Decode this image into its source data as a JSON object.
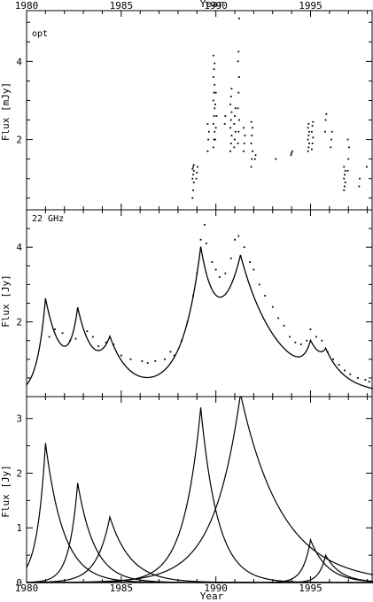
{
  "chart_data": {
    "type": "multi-panel",
    "x_axis": {
      "label": "Year",
      "range": [
        1980,
        1998.3
      ],
      "tick_labels": [
        "1980",
        "1985",
        "1990",
        "1995"
      ]
    },
    "panels": [
      {
        "type": "scatter",
        "label": "opt",
        "ylabel": "Flux [mJy]",
        "ylim": [
          0.2,
          5.3
        ],
        "ytick_labels": [
          "2",
          "4"
        ],
        "ytick_values": [
          2,
          4
        ],
        "groups": [
          {
            "t": 1988.8,
            "values": [
              0.5,
              0.7,
              0.9,
              1.0,
              1.1,
              1.2,
              1.25,
              1.3,
              1.35
            ]
          },
          {
            "t": 1989.0,
            "values": [
              1.0,
              1.15,
              1.3
            ]
          },
          {
            "t": 1989.6,
            "values": [
              1.7,
              2.0,
              2.2,
              2.4
            ]
          },
          {
            "t": 1989.9,
            "values": [
              1.8,
              2.0,
              2.2,
              2.4,
              2.6,
              2.8,
              3.0,
              3.2,
              3.4,
              3.6,
              3.8,
              3.95,
              4.15
            ]
          },
          {
            "t": 1990.0,
            "values": [
              2.0,
              2.3,
              2.6,
              2.9,
              3.2
            ]
          },
          {
            "t": 1990.5,
            "values": [
              2.4,
              2.6
            ]
          },
          {
            "t": 1990.8,
            "values": [
              1.7,
              1.9,
              2.1,
              2.3,
              2.5,
              2.7,
              2.9,
              3.1,
              3.3
            ]
          },
          {
            "t": 1991.0,
            "values": [
              1.8,
              2.0,
              2.2,
              2.4,
              2.6,
              2.8
            ]
          },
          {
            "t": 1991.2,
            "values": [
              1.9,
              2.2,
              2.5,
              2.8,
              3.2,
              3.6,
              4.0,
              4.25,
              5.1
            ]
          },
          {
            "t": 1991.5,
            "values": [
              1.7,
              1.9,
              2.1,
              2.3
            ]
          },
          {
            "t": 1991.9,
            "values": [
              1.3,
              1.5,
              1.7,
              1.9,
              2.1,
              2.3,
              2.45
            ]
          },
          {
            "t": 1992.1,
            "values": [
              1.5,
              1.6
            ]
          },
          {
            "t": 1993.2,
            "values": [
              1.5
            ]
          },
          {
            "t": 1994.0,
            "values": [
              1.6,
              1.65,
              1.7
            ]
          },
          {
            "t": 1994.9,
            "values": [
              1.7,
              1.8,
              1.9,
              2.0,
              2.1,
              2.2,
              2.3,
              2.4
            ]
          },
          {
            "t": 1995.1,
            "values": [
              1.75,
              1.9,
              2.05,
              2.2,
              2.35,
              2.45
            ]
          },
          {
            "t": 1995.8,
            "values": [
              2.2,
              2.5,
              2.65
            ]
          },
          {
            "t": 1996.1,
            "values": [
              1.8,
              2.0,
              2.2
            ]
          },
          {
            "t": 1996.8,
            "values": [
              0.7,
              0.8,
              0.9,
              1.0,
              1.1,
              1.2,
              1.3
            ]
          },
          {
            "t": 1997.0,
            "values": [
              1.2,
              1.5,
              1.8,
              2.0
            ]
          },
          {
            "t": 1997.6,
            "values": [
              0.8,
              1.0
            ]
          },
          {
            "t": 1998.0,
            "values": [
              1.3
            ]
          }
        ]
      },
      {
        "type": "line+scatter",
        "label": "22 GHz",
        "ylabel": "Flux [Jy]",
        "ylim": [
          0.0,
          5.0
        ],
        "ytick_labels": [
          "2",
          "4"
        ],
        "ytick_values": [
          2,
          4
        ],
        "model_components": [
          {
            "t0": 1981.0,
            "peak": 2.55,
            "tau_rise": 0.45,
            "tau_decay": 0.95
          },
          {
            "t0": 1982.7,
            "peak": 1.82,
            "tau_rise": 0.45,
            "tau_decay": 0.9
          },
          {
            "t0": 1984.4,
            "peak": 1.2,
            "tau_rise": 0.7,
            "tau_decay": 1.1
          },
          {
            "t0": 1989.2,
            "peak": 3.2,
            "tau_rise": 0.9,
            "tau_decay": 0.9
          },
          {
            "t0": 1991.3,
            "peak": 3.45,
            "tau_rise": 1.4,
            "tau_decay": 2.2
          },
          {
            "t0": 1995.0,
            "peak": 0.78,
            "tau_rise": 0.4,
            "tau_decay": 0.9
          },
          {
            "t0": 1995.8,
            "peak": 0.5,
            "tau_rise": 0.35,
            "tau_decay": 0.8
          }
        ],
        "baseline": 0.03,
        "observations": [
          [
            1981.2,
            1.6
          ],
          [
            1981.5,
            1.8
          ],
          [
            1981.9,
            1.7
          ],
          [
            1982.3,
            1.5
          ],
          [
            1982.6,
            1.55
          ],
          [
            1983.2,
            1.75
          ],
          [
            1983.5,
            1.6
          ],
          [
            1983.8,
            1.35
          ],
          [
            1984.2,
            1.45
          ],
          [
            1984.6,
            1.4
          ],
          [
            1985.0,
            1.1
          ],
          [
            1985.5,
            1.0
          ],
          [
            1986.1,
            0.95
          ],
          [
            1986.4,
            0.9
          ],
          [
            1986.8,
            0.95
          ],
          [
            1987.3,
            1.0
          ],
          [
            1987.6,
            1.2
          ],
          [
            1987.8,
            1.1
          ],
          [
            1988.2,
            1.5
          ],
          [
            1988.5,
            2.0
          ],
          [
            1988.8,
            2.7
          ],
          [
            1989.0,
            3.3
          ],
          [
            1989.2,
            4.2
          ],
          [
            1989.4,
            4.6
          ],
          [
            1989.5,
            4.1
          ],
          [
            1989.8,
            3.6
          ],
          [
            1990.0,
            3.4
          ],
          [
            1990.2,
            3.2
          ],
          [
            1990.5,
            3.3
          ],
          [
            1990.8,
            3.7
          ],
          [
            1991.0,
            4.2
          ],
          [
            1991.2,
            4.3
          ],
          [
            1991.5,
            4.0
          ],
          [
            1991.8,
            3.6
          ],
          [
            1992.0,
            3.4
          ],
          [
            1992.3,
            3.0
          ],
          [
            1992.6,
            2.7
          ],
          [
            1993.0,
            2.4
          ],
          [
            1993.3,
            2.1
          ],
          [
            1993.6,
            1.9
          ],
          [
            1993.9,
            1.6
          ],
          [
            1994.2,
            1.45
          ],
          [
            1994.5,
            1.4
          ],
          [
            1994.8,
            1.5
          ],
          [
            1995.0,
            1.8
          ],
          [
            1995.3,
            1.6
          ],
          [
            1995.6,
            1.5
          ],
          [
            1995.9,
            1.2
          ],
          [
            1996.2,
            1.0
          ],
          [
            1996.5,
            0.85
          ],
          [
            1996.8,
            0.7
          ],
          [
            1997.1,
            0.6
          ],
          [
            1997.5,
            0.5
          ],
          [
            1997.9,
            0.45
          ],
          [
            1998.1,
            0.4
          ]
        ]
      },
      {
        "type": "line",
        "label": "",
        "ylabel": "Flux [Jy]",
        "ylim": [
          0.0,
          3.4
        ],
        "ytick_labels": [
          "0",
          "1",
          "2",
          "3"
        ],
        "ytick_values": [
          0,
          1,
          2,
          3
        ],
        "uses_components_of_panel": 1
      }
    ],
    "grid": false,
    "legend": "none"
  }
}
